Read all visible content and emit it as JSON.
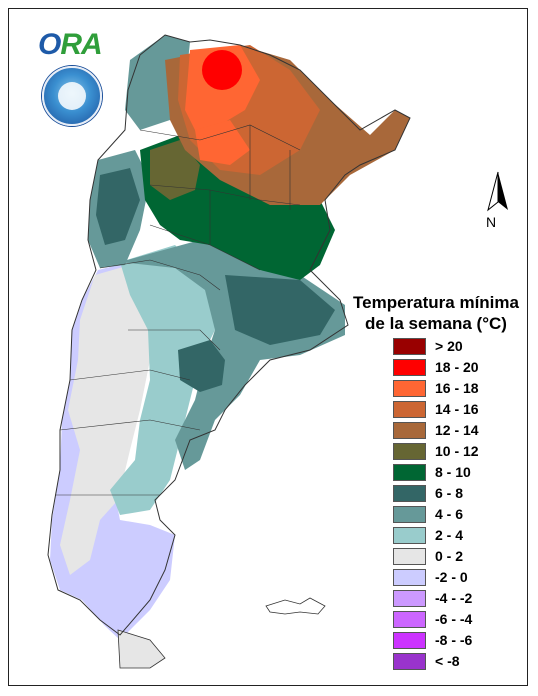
{
  "logo": {
    "text_o": "O",
    "text_rest": "RA"
  },
  "north_label": "N",
  "legend": {
    "title_line1": "Temperatura mínima",
    "title_line2": "de la semana (°C)",
    "items": [
      {
        "label": "> 20",
        "color": "#990000"
      },
      {
        "label": "18 - 20",
        "color": "#ff0000"
      },
      {
        "label": "16 - 18",
        "color": "#ff6633"
      },
      {
        "label": "14 - 16",
        "color": "#cc6633"
      },
      {
        "label": "12 - 14",
        "color": "#a8683a"
      },
      {
        "label": "10 - 12",
        "color": "#666633"
      },
      {
        "label": "8 - 10",
        "color": "#006633"
      },
      {
        "label": "6 - 8",
        "color": "#336666"
      },
      {
        "label": "4 - 6",
        "color": "#669999"
      },
      {
        "label": "2 - 4",
        "color": "#99cccc"
      },
      {
        "label": "0 - 2",
        "color": "#e6e6e6"
      },
      {
        "label": "-2 - 0",
        "color": "#ccccff"
      },
      {
        "label": "-4 - -2",
        "color": "#cc99ff"
      },
      {
        "label": "-6 - -4",
        "color": "#cc66ff"
      },
      {
        "label": "-8 - -6",
        "color": "#cc33ff"
      },
      {
        "label": "< -8",
        "color": "#9933cc"
      }
    ]
  }
}
